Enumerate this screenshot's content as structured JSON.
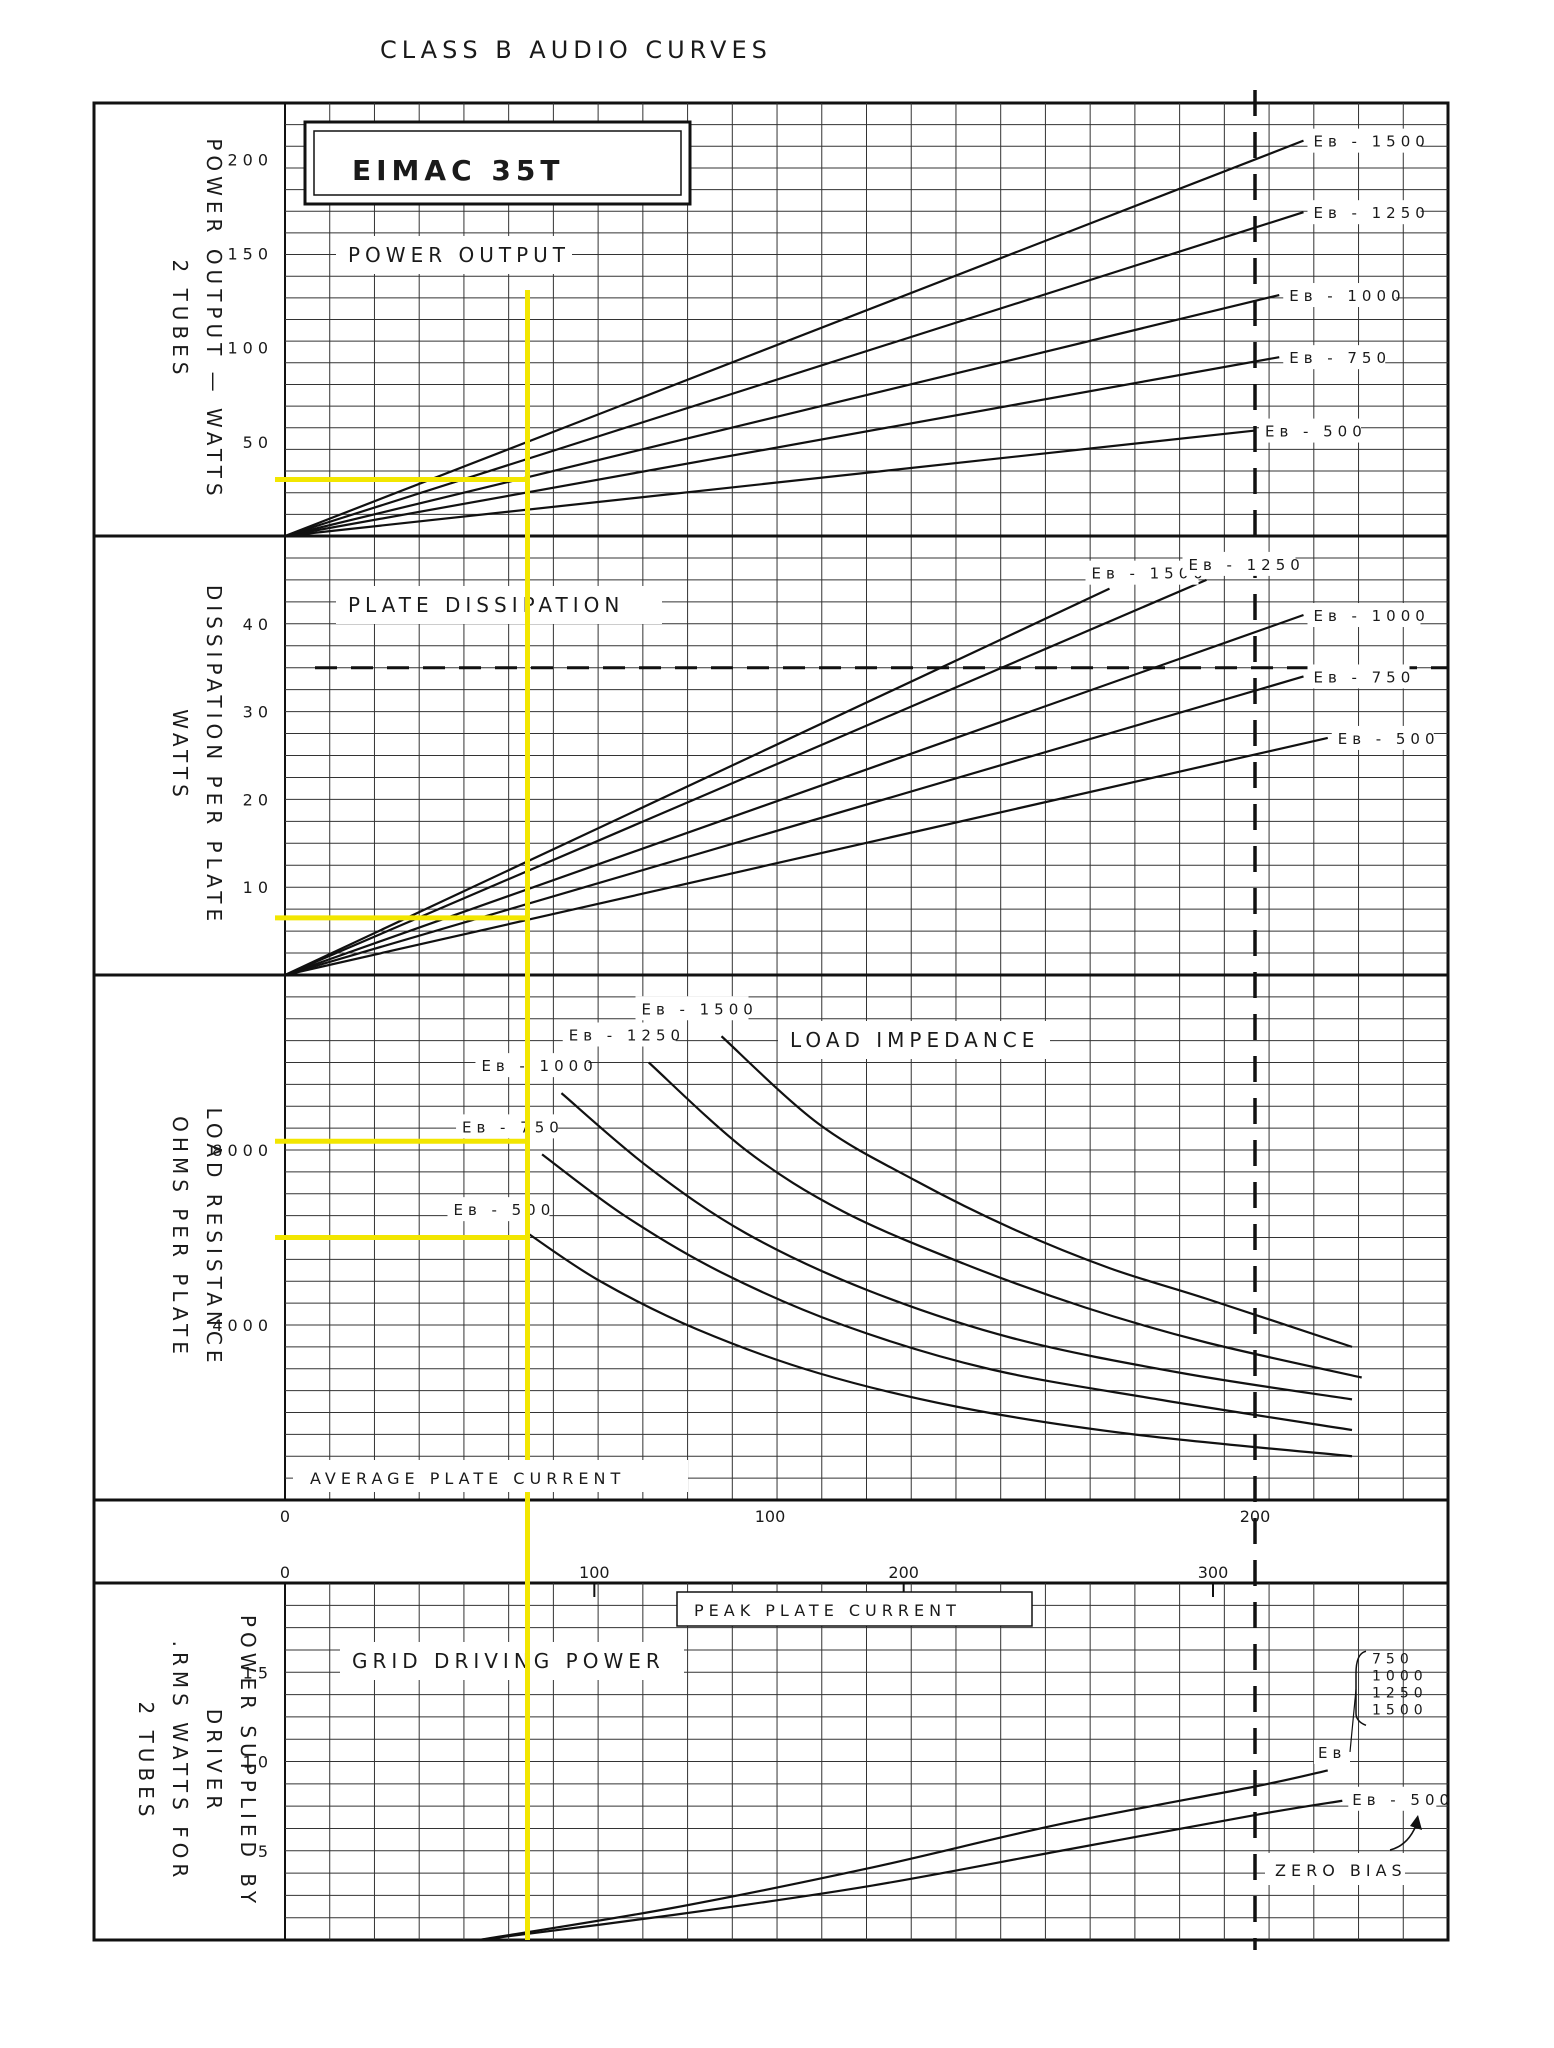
{
  "chart_data": {
    "type": "line",
    "title": "CLASS B AUDIO CURVES",
    "tube_label": "EIMAC 35T",
    "x_axis_avg": {
      "label": "AVERAGE PLATE CURRENT",
      "ticks": [
        "0",
        "100",
        "200"
      ]
    },
    "x_axis_peak": {
      "label": "PEAK PLATE CURRENT",
      "ticks": [
        "0",
        "100",
        "200",
        "300"
      ]
    },
    "reference_line": {
      "avg_plate_current": 200,
      "label": "ZERO BIAS"
    },
    "marker_line": {
      "avg_plate_current": 50,
      "color": "#f2e600"
    },
    "panels": [
      {
        "id": "power-output",
        "heading": "POWER OUTPUT",
        "ylabel_lines": [
          "POWER OUTPUT — WATTS",
          "2 TUBES"
        ],
        "ylim": [
          0,
          230
        ],
        "yticks": [
          "50",
          "100",
          "150",
          "200"
        ],
        "ytick_values": [
          50,
          100,
          150,
          200
        ],
        "series": [
          {
            "name": "Eʙ - 1500",
            "points": [
              [
                0,
                0
              ],
              [
                210,
                210
              ]
            ]
          },
          {
            "name": "Eʙ - 1250",
            "points": [
              [
                0,
                0
              ],
              [
                210,
                172
              ]
            ]
          },
          {
            "name": "Eʙ - 1000",
            "points": [
              [
                0,
                0
              ],
              [
                205,
                128
              ]
            ]
          },
          {
            "name": "Eʙ - 750",
            "points": [
              [
                0,
                0
              ],
              [
                205,
                95
              ]
            ]
          },
          {
            "name": "Eʙ - 500",
            "points": [
              [
                0,
                0
              ],
              [
                200,
                56
              ]
            ]
          }
        ],
        "marker_value": 30
      },
      {
        "id": "plate-dissipation",
        "heading": "PLATE DISSIPATION",
        "ylabel_lines": [
          "DISSIPATION PER PLATE",
          "WATTS"
        ],
        "ylim": [
          0,
          50
        ],
        "yticks": [
          "10",
          "20",
          "30",
          "40"
        ],
        "ytick_values": [
          10,
          20,
          30,
          40
        ],
        "limit_line": 35,
        "series": [
          {
            "name": "Eʙ - 1500",
            "points": [
              [
                0,
                0
              ],
              [
                170,
                44
              ]
            ]
          },
          {
            "name": "Eʙ - 1250",
            "points": [
              [
                0,
                0
              ],
              [
                190,
                45
              ]
            ]
          },
          {
            "name": "Eʙ - 1000",
            "points": [
              [
                0,
                0
              ],
              [
                210,
                41
              ]
            ]
          },
          {
            "name": "Eʙ - 750",
            "points": [
              [
                0,
                0
              ],
              [
                210,
                34
              ]
            ]
          },
          {
            "name": "Eʙ - 500",
            "points": [
              [
                0,
                0
              ],
              [
                215,
                27
              ]
            ]
          }
        ],
        "marker_value": 6.5
      },
      {
        "id": "load-impedance",
        "heading": "LOAD IMPEDANCE",
        "ylabel_lines": [
          "LOAD RESISTANCE",
          "OHMS PER PLATE"
        ],
        "ylim": [
          0,
          12000
        ],
        "yticks": [
          "4000",
          "8000"
        ],
        "ytick_values": [
          4000,
          8000
        ],
        "series": [
          {
            "name": "Eʙ - 1500",
            "points": [
              [
                90,
                10600
              ],
              [
                110,
                8600
              ],
              [
                130,
                7300
              ],
              [
                150,
                6200
              ],
              [
                170,
                5300
              ],
              [
                190,
                4600
              ],
              [
                220,
                3500
              ]
            ]
          },
          {
            "name": "Eʙ - 1250",
            "points": [
              [
                75,
                10000
              ],
              [
                95,
                8000
              ],
              [
                115,
                6600
              ],
              [
                140,
                5400
              ],
              [
                165,
                4400
              ],
              [
                190,
                3600
              ],
              [
                222,
                2800
              ]
            ]
          },
          {
            "name": "Eʙ - 1000",
            "points": [
              [
                57,
                9300
              ],
              [
                75,
                7600
              ],
              [
                95,
                6100
              ],
              [
                120,
                4800
              ],
              [
                150,
                3700
              ],
              [
                185,
                2900
              ],
              [
                220,
                2300
              ]
            ]
          },
          {
            "name": "Eʙ - 750",
            "points": [
              [
                53,
                7900
              ],
              [
                70,
                6500
              ],
              [
                90,
                5200
              ],
              [
                115,
                4000
              ],
              [
                145,
                3000
              ],
              [
                180,
                2300
              ],
              [
                220,
                1600
              ]
            ]
          },
          {
            "name": "Eʙ - 500",
            "points": [
              [
                50,
                6100
              ],
              [
                65,
                5000
              ],
              [
                85,
                3900
              ],
              [
                110,
                2900
              ],
              [
                140,
                2100
              ],
              [
                175,
                1500
              ],
              [
                220,
                1000
              ]
            ]
          }
        ],
        "marker_values": [
          8200,
          6000
        ]
      },
      {
        "id": "grid-driving-power",
        "heading": "GRID DRIVING POWER",
        "ylabel_lines": [
          "POWER SUPPLIED BY",
          "DRIVER",
          ".RMS WATTS FOR",
          "2 TUBES"
        ],
        "ylim": [
          0,
          20
        ],
        "yticks": [
          "5",
          "10",
          "15"
        ],
        "ytick_values": [
          5,
          10,
          15
        ],
        "series": [
          {
            "name": "Eʙ 750 / 1000 / 1250 / 1500",
            "points": [
              [
                40,
                0
              ],
              [
                80,
                1.8
              ],
              [
                120,
                4
              ],
              [
                160,
                6.5
              ],
              [
                200,
                8.6
              ],
              [
                215,
                9.5
              ]
            ]
          },
          {
            "name": "Eʙ - 500",
            "points": [
              [
                40,
                0
              ],
              [
                80,
                1.4
              ],
              [
                120,
                3
              ],
              [
                160,
                5
              ],
              [
                200,
                7
              ],
              [
                218,
                7.8
              ]
            ]
          }
        ],
        "bracket_labels": [
          "750",
          "1000",
          "1250",
          "1500"
        ],
        "eb_label": "Eʙ",
        "eb_500_label": "Eʙ - 500"
      }
    ]
  }
}
